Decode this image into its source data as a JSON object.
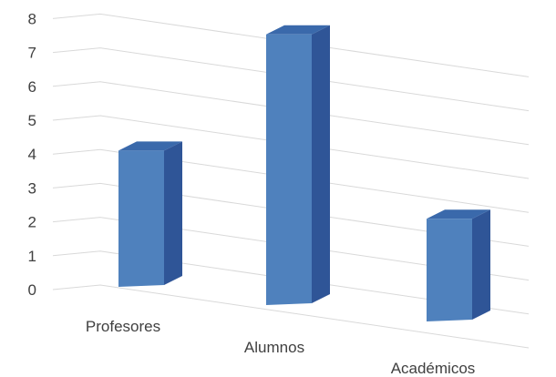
{
  "chart_data": {
    "type": "bar",
    "style": "3d-column",
    "categories": [
      "Profesores",
      "Alumnos",
      "Académicos"
    ],
    "values": [
      4,
      8,
      3
    ],
    "title": "",
    "xlabel": "",
    "ylabel": "",
    "ylim": [
      0,
      8
    ],
    "yticks": [
      "0",
      "1",
      "2",
      "3",
      "4",
      "5",
      "6",
      "7",
      "8"
    ],
    "grid": true,
    "legend": "none",
    "colors": {
      "front": "#4f81bd",
      "side": "#2f5597",
      "top": "#3a69ab",
      "grid": "#d9d9d9",
      "text": "#404040"
    }
  }
}
